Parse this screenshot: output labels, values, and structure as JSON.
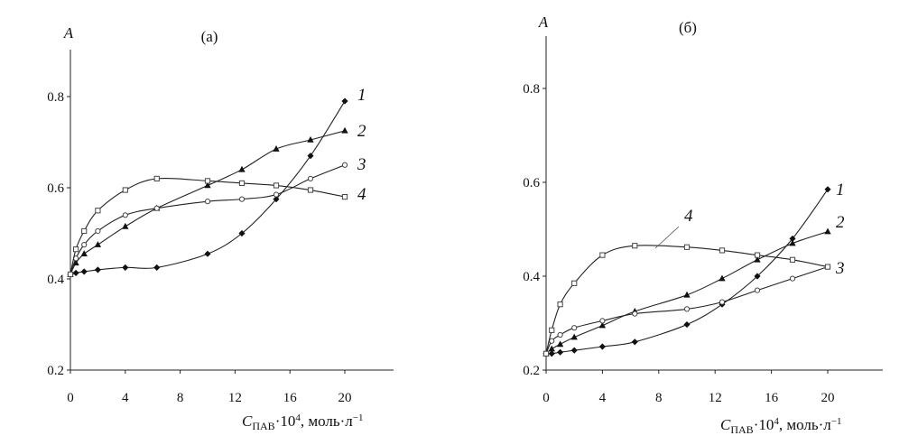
{
  "chart_data": [
    {
      "type": "line",
      "panel_label": "(а)",
      "ylabel": "A",
      "xlabel": {
        "c": "C",
        "sub": "ПАВ",
        "rest": "·10",
        "sup": "4",
        "unit": ", моль·л",
        "unit_sup": "−1"
      },
      "xlim": [
        0,
        23
      ],
      "ylim": [
        0.2,
        0.9
      ],
      "xticks": [
        0,
        4,
        8,
        12,
        16,
        20
      ],
      "yticks": [
        0.2,
        0.4,
        0.6,
        0.8
      ],
      "ytick_labels": [
        "0.2",
        "0.4",
        "0.6",
        "0.8"
      ],
      "grid": false,
      "series": [
        {
          "name": "1",
          "marker": "diamond-filled",
          "x": [
            0,
            0.4,
            1,
            2,
            4,
            6.3,
            10,
            12.5,
            15,
            17.5,
            20
          ],
          "y": [
            0.41,
            0.413,
            0.416,
            0.42,
            0.425,
            0.425,
            0.455,
            0.5,
            0.575,
            0.67,
            0.79
          ]
        },
        {
          "name": "2",
          "marker": "triangle-filled",
          "x": [
            0,
            0.4,
            1,
            2,
            4,
            6.3,
            10,
            12.5,
            15,
            17.5,
            20
          ],
          "y": [
            0.41,
            0.435,
            0.455,
            0.475,
            0.515,
            0.555,
            0.605,
            0.64,
            0.685,
            0.705,
            0.725
          ]
        },
        {
          "name": "3",
          "marker": "circle-open",
          "x": [
            0,
            0.4,
            1,
            2,
            4,
            6.3,
            10,
            12.5,
            15,
            17.5,
            20
          ],
          "y": [
            0.41,
            0.445,
            0.475,
            0.505,
            0.54,
            0.555,
            0.57,
            0.575,
            0.585,
            0.62,
            0.65
          ]
        },
        {
          "name": "4",
          "marker": "square-open",
          "x": [
            0,
            0.4,
            1,
            2,
            4,
            6.3,
            10,
            12.5,
            15,
            17.5,
            20
          ],
          "y": [
            0.41,
            0.465,
            0.505,
            0.55,
            0.595,
            0.62,
            0.615,
            0.61,
            0.605,
            0.595,
            0.58
          ]
        }
      ]
    },
    {
      "type": "line",
      "panel_label": "(б)",
      "ylabel": "A",
      "xlabel": {
        "c": "C",
        "sub": "ПАВ",
        "rest": "·10",
        "sup": "4",
        "unit": ", моль·л",
        "unit_sup": "−1"
      },
      "xlim": [
        0,
        23
      ],
      "ylim": [
        0.2,
        0.9
      ],
      "xticks": [
        0,
        4,
        8,
        12,
        16,
        20
      ],
      "yticks": [
        0.2,
        0.4,
        0.6,
        0.8
      ],
      "ytick_labels": [
        "0.2",
        "0.4",
        "0.6",
        "0.8"
      ],
      "grid": false,
      "series": [
        {
          "name": "1",
          "marker": "diamond-filled",
          "x": [
            0,
            0.4,
            1,
            2,
            4,
            6.3,
            10,
            12.5,
            15,
            17.5,
            20
          ],
          "y": [
            0.235,
            0.235,
            0.238,
            0.242,
            0.25,
            0.26,
            0.297,
            0.34,
            0.4,
            0.48,
            0.585
          ]
        },
        {
          "name": "2",
          "marker": "triangle-filled",
          "x": [
            0,
            0.4,
            1,
            2,
            4,
            6.3,
            10,
            12.5,
            15,
            17.5,
            20
          ],
          "y": [
            0.235,
            0.245,
            0.255,
            0.27,
            0.295,
            0.325,
            0.36,
            0.395,
            0.435,
            0.47,
            0.495
          ]
        },
        {
          "name": "3",
          "marker": "circle-open",
          "x": [
            0,
            0.4,
            1,
            2,
            4,
            6.3,
            10,
            12.5,
            15,
            17.5,
            20
          ],
          "y": [
            0.235,
            0.262,
            0.275,
            0.29,
            0.305,
            0.32,
            0.33,
            0.345,
            0.37,
            0.395,
            0.42
          ]
        },
        {
          "name": "4",
          "marker": "square-open",
          "x": [
            0,
            0.4,
            1,
            2,
            4,
            6.3,
            10,
            12.5,
            15,
            17.5,
            20
          ],
          "y": [
            0.235,
            0.285,
            0.34,
            0.385,
            0.445,
            0.465,
            0.462,
            0.455,
            0.445,
            0.435,
            0.42
          ]
        }
      ]
    }
  ]
}
